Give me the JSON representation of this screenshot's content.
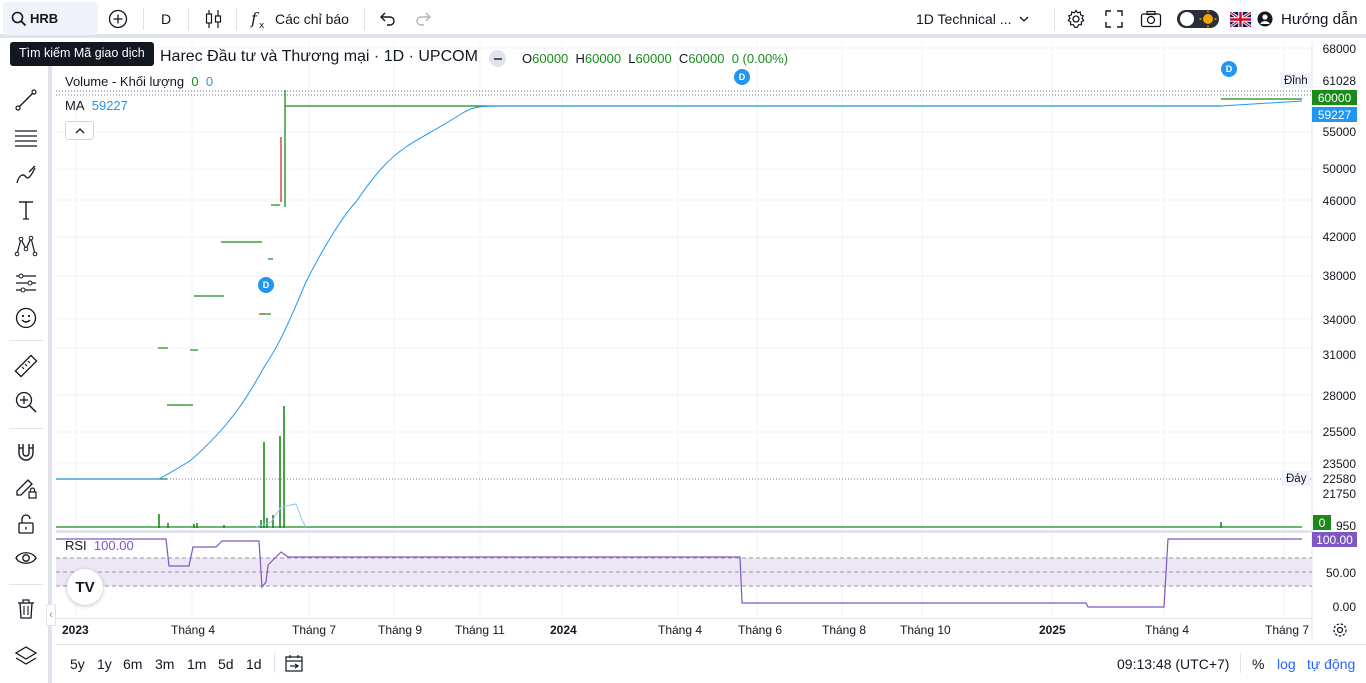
{
  "toolbar": {
    "symbol": "HRB",
    "interval": "D",
    "indicators_label": "Các chỉ báo",
    "layout_name": "1D Technical ...",
    "help_label": "Hướng dẫn"
  },
  "tooltip": "Tìm kiếm Mã giao dịch",
  "legend": {
    "title": "Harec Đầu tư và Thương mại · 1D · UPCOM",
    "open_k": "O",
    "open_v": "60000",
    "high_k": "H",
    "high_v": "60000",
    "low_k": "L",
    "low_v": "60000",
    "close_k": "C",
    "close_v": "60000",
    "change": "0 (0.00%)",
    "volume_label": "Volume - Khối lượng",
    "volume_v1": "0",
    "volume_v2": "0",
    "ma_label": "MA",
    "ma_value": "59227",
    "rsi_label": "RSI",
    "rsi_value": "100.00"
  },
  "price_axis": [
    "68000",
    "61028",
    "60000",
    "59227",
    "55000",
    "50000",
    "46000",
    "42000",
    "38000",
    "34000",
    "31000",
    "28000",
    "25500",
    "23500",
    "22580",
    "21750",
    "0",
    "950"
  ],
  "price_labels": {
    "top_label": "Đỉnh",
    "top_value": "61028",
    "last_value": "60000",
    "ma_tag": "59227",
    "bottom_label": "Đáy",
    "bottom_value": "22580",
    "vol_tag": "0"
  },
  "rsi_axis": [
    "100.00",
    "50.00",
    "0.00"
  ],
  "time_axis": [
    {
      "label": "2023",
      "bold": true
    },
    {
      "label": "Tháng 4",
      "bold": false
    },
    {
      "label": "Tháng 7",
      "bold": false
    },
    {
      "label": "Tháng 9",
      "bold": false
    },
    {
      "label": "Tháng 11",
      "bold": false
    },
    {
      "label": "2024",
      "bold": true
    },
    {
      "label": "Tháng 4",
      "bold": false
    },
    {
      "label": "Tháng 6",
      "bold": false
    },
    {
      "label": "Tháng 8",
      "bold": false
    },
    {
      "label": "Tháng 10",
      "bold": false
    },
    {
      "label": "2025",
      "bold": true
    },
    {
      "label": "Tháng 4",
      "bold": false
    },
    {
      "label": "Tháng 7",
      "bold": false
    }
  ],
  "bottom": {
    "ranges": [
      "5y",
      "1y",
      "6m",
      "3m",
      "1m",
      "5d",
      "1d"
    ],
    "clock": "09:13:48 (UTC+7)",
    "percent": "%",
    "log": "log",
    "auto": "tự động"
  },
  "dividend_badge": "D",
  "logo_text": "TV",
  "colors": {
    "up": "#1b8a1b",
    "down": "#d32f2f",
    "ma": "#2196f3",
    "rsi": "#7e57c2",
    "tag_green": "#1b8a1b",
    "tag_blue": "#2196f3"
  }
}
